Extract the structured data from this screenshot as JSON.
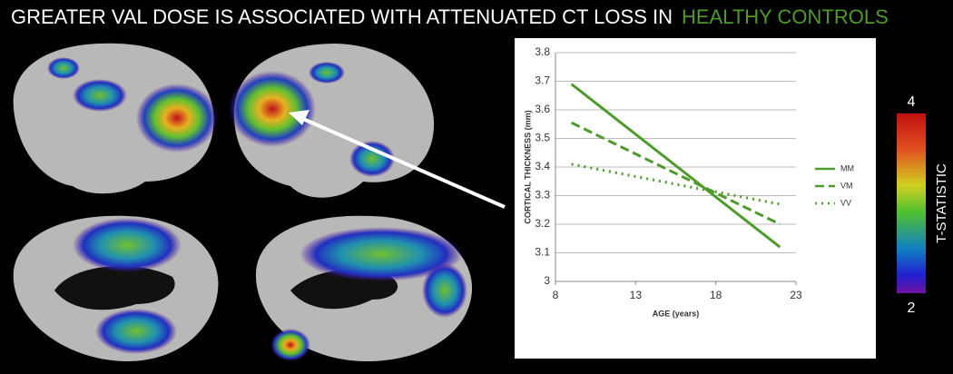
{
  "header": {
    "title": "GREATER VAL DOSE IS ASSOCIATED WITH ATTENUATED CT LOSS IN",
    "highlight": "HEALTHY CONTROLS"
  },
  "colorbar": {
    "max": 4,
    "min": 2,
    "label": "T-STATISTIC"
  },
  "chart_data": {
    "type": "line",
    "x": [
      9,
      22
    ],
    "series": [
      {
        "name": "MM",
        "color": "#4e9a2c",
        "style": "solid",
        "values": [
          3.69,
          3.12
        ]
      },
      {
        "name": "VM",
        "color": "#4e9a2c",
        "style": "dashed",
        "values": [
          3.555,
          3.2
        ]
      },
      {
        "name": "VV",
        "color": "#4e9a2c",
        "style": "dotted",
        "values": [
          3.41,
          3.27
        ]
      }
    ],
    "xlim": [
      8,
      23
    ],
    "xticks": [
      8,
      13,
      18,
      23
    ],
    "ylim": [
      3,
      3.8
    ],
    "yticks": [
      3,
      3.1,
      3.2,
      3.3,
      3.4,
      3.5,
      3.6,
      3.7,
      3.8
    ],
    "xlabel": "AGE (years)",
    "ylabel": "CORTICAL THICKNESS (mm)",
    "grid": true,
    "legend": "right"
  }
}
